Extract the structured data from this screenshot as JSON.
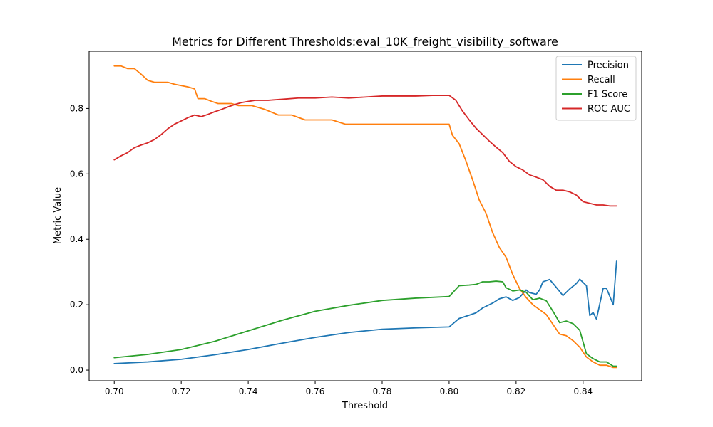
{
  "chart_data": {
    "type": "line",
    "title": "Metrics for Different Thresholds:eval_10K_freight_visibility_software",
    "xlabel": "Threshold",
    "ylabel": "Metric Value",
    "xlim": [
      0.6925,
      0.8575
    ],
    "ylim": [
      -0.0325,
      0.975
    ],
    "xticks": [
      0.7,
      0.72,
      0.74,
      0.76,
      0.78,
      0.8,
      0.82,
      0.84
    ],
    "xtick_labels": [
      "0.70",
      "0.72",
      "0.74",
      "0.76",
      "0.78",
      "0.80",
      "0.82",
      "0.84"
    ],
    "yticks": [
      0.0,
      0.2,
      0.4,
      0.6,
      0.8
    ],
    "ytick_labels": [
      "0.0",
      "0.2",
      "0.4",
      "0.6",
      "0.8"
    ],
    "grid": false,
    "legend_position": "top-right",
    "series": [
      {
        "name": "Precision",
        "color": "#1f77b4",
        "x": [
          0.7,
          0.71,
          0.72,
          0.73,
          0.74,
          0.75,
          0.76,
          0.77,
          0.78,
          0.79,
          0.8,
          0.803,
          0.806,
          0.808,
          0.81,
          0.813,
          0.815,
          0.817,
          0.819,
          0.821,
          0.823,
          0.824,
          0.826,
          0.827,
          0.828,
          0.83,
          0.832,
          0.834,
          0.836,
          0.838,
          0.839,
          0.841,
          0.842,
          0.843,
          0.844,
          0.846,
          0.847,
          0.849,
          0.85
        ],
        "y": [
          0.02,
          0.025,
          0.033,
          0.047,
          0.063,
          0.082,
          0.1,
          0.115,
          0.125,
          0.129,
          0.132,
          0.158,
          0.168,
          0.175,
          0.19,
          0.205,
          0.218,
          0.224,
          0.213,
          0.222,
          0.245,
          0.237,
          0.232,
          0.245,
          0.27,
          0.277,
          0.253,
          0.228,
          0.248,
          0.265,
          0.278,
          0.258,
          0.167,
          0.176,
          0.156,
          0.25,
          0.25,
          0.2,
          0.333
        ]
      },
      {
        "name": "Recall",
        "color": "#ff7f0e",
        "x": [
          0.7,
          0.702,
          0.704,
          0.706,
          0.708,
          0.71,
          0.712,
          0.714,
          0.716,
          0.718,
          0.72,
          0.722,
          0.724,
          0.725,
          0.727,
          0.729,
          0.731,
          0.733,
          0.735,
          0.737,
          0.741,
          0.745,
          0.749,
          0.753,
          0.757,
          0.761,
          0.765,
          0.769,
          0.773,
          0.777,
          0.781,
          0.785,
          0.789,
          0.793,
          0.797,
          0.8,
          0.801,
          0.803,
          0.805,
          0.807,
          0.809,
          0.811,
          0.813,
          0.815,
          0.817,
          0.819,
          0.821,
          0.823,
          0.825,
          0.827,
          0.829,
          0.831,
          0.833,
          0.835,
          0.837,
          0.839,
          0.841,
          0.843,
          0.845,
          0.847,
          0.849,
          0.85
        ],
        "y": [
          0.93,
          0.93,
          0.922,
          0.922,
          0.905,
          0.886,
          0.88,
          0.88,
          0.88,
          0.874,
          0.87,
          0.866,
          0.86,
          0.83,
          0.83,
          0.822,
          0.815,
          0.815,
          0.815,
          0.809,
          0.809,
          0.797,
          0.78,
          0.78,
          0.765,
          0.765,
          0.765,
          0.752,
          0.752,
          0.752,
          0.752,
          0.752,
          0.752,
          0.752,
          0.752,
          0.752,
          0.718,
          0.692,
          0.64,
          0.582,
          0.52,
          0.48,
          0.42,
          0.375,
          0.345,
          0.292,
          0.25,
          0.222,
          0.2,
          0.185,
          0.17,
          0.14,
          0.11,
          0.105,
          0.09,
          0.07,
          0.04,
          0.025,
          0.015,
          0.015,
          0.008,
          0.008
        ]
      },
      {
        "name": "F1 Score",
        "color": "#2ca02c",
        "x": [
          0.7,
          0.71,
          0.72,
          0.73,
          0.74,
          0.75,
          0.76,
          0.77,
          0.78,
          0.79,
          0.8,
          0.803,
          0.806,
          0.808,
          0.81,
          0.812,
          0.814,
          0.816,
          0.817,
          0.819,
          0.821,
          0.823,
          0.825,
          0.827,
          0.829,
          0.831,
          0.833,
          0.835,
          0.837,
          0.839,
          0.841,
          0.843,
          0.845,
          0.847,
          0.849,
          0.85
        ],
        "y": [
          0.038,
          0.048,
          0.063,
          0.088,
          0.12,
          0.152,
          0.18,
          0.198,
          0.213,
          0.22,
          0.225,
          0.258,
          0.26,
          0.262,
          0.27,
          0.27,
          0.272,
          0.27,
          0.252,
          0.242,
          0.245,
          0.238,
          0.215,
          0.22,
          0.212,
          0.18,
          0.145,
          0.15,
          0.142,
          0.122,
          0.05,
          0.035,
          0.025,
          0.025,
          0.012,
          0.012
        ]
      },
      {
        "name": "ROC AUC",
        "color": "#d62728",
        "x": [
          0.7,
          0.702,
          0.704,
          0.706,
          0.708,
          0.71,
          0.712,
          0.714,
          0.716,
          0.718,
          0.72,
          0.722,
          0.724,
          0.726,
          0.728,
          0.73,
          0.732,
          0.734,
          0.736,
          0.738,
          0.742,
          0.746,
          0.75,
          0.755,
          0.76,
          0.765,
          0.77,
          0.775,
          0.78,
          0.785,
          0.79,
          0.795,
          0.8,
          0.802,
          0.804,
          0.806,
          0.808,
          0.81,
          0.812,
          0.814,
          0.816,
          0.818,
          0.82,
          0.822,
          0.824,
          0.826,
          0.828,
          0.83,
          0.832,
          0.834,
          0.836,
          0.838,
          0.84,
          0.842,
          0.844,
          0.846,
          0.848,
          0.85
        ],
        "y": [
          0.643,
          0.655,
          0.665,
          0.68,
          0.688,
          0.695,
          0.705,
          0.72,
          0.738,
          0.752,
          0.762,
          0.772,
          0.78,
          0.775,
          0.782,
          0.79,
          0.797,
          0.805,
          0.812,
          0.818,
          0.825,
          0.825,
          0.828,
          0.832,
          0.832,
          0.835,
          0.832,
          0.835,
          0.838,
          0.838,
          0.838,
          0.84,
          0.84,
          0.825,
          0.792,
          0.765,
          0.74,
          0.72,
          0.7,
          0.682,
          0.665,
          0.638,
          0.622,
          0.612,
          0.597,
          0.59,
          0.582,
          0.562,
          0.55,
          0.55,
          0.545,
          0.535,
          0.515,
          0.51,
          0.505,
          0.505,
          0.502,
          0.502
        ]
      }
    ]
  }
}
